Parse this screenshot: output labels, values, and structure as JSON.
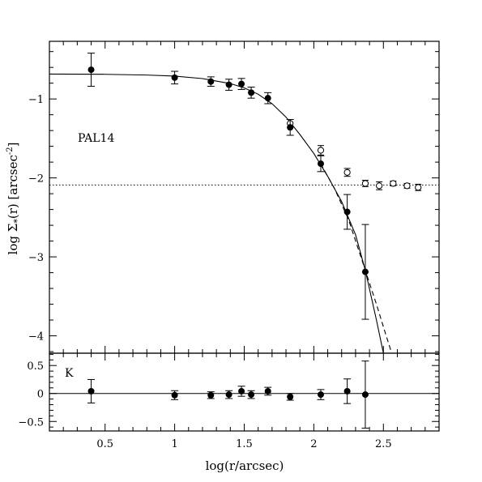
{
  "chart_data": [
    {
      "type": "scatter",
      "panel": "top",
      "title": "",
      "xlabel": "",
      "ylabel": "log Σ",
      "ylabel_sub": "*",
      "ylabel_rest": "(r) [arcsec",
      "ylabel_sup": "-2",
      "ylabel_end": "]",
      "annotation": "PAL14",
      "xlim": [
        0.1,
        2.9
      ],
      "ylim": [
        -4.22,
        -0.27
      ],
      "x_ticks": [
        0.5,
        1,
        1.5,
        2,
        2.5
      ],
      "y_ticks": [
        {
          "value": -1,
          "label": "−1"
        },
        {
          "value": -2,
          "label": "−2"
        },
        {
          "value": -3,
          "label": "−3"
        },
        {
          "value": -4,
          "label": "−4"
        }
      ],
      "background_level": -2.09,
      "series": [
        {
          "style": "filled-circles",
          "points": [
            {
              "x": 0.4,
              "y": -0.63,
              "err": 0.21
            },
            {
              "x": 1.0,
              "y": -0.73,
              "err": 0.08
            },
            {
              "x": 1.26,
              "y": -0.78,
              "err": 0.06
            },
            {
              "x": 1.39,
              "y": -0.82,
              "err": 0.07
            },
            {
              "x": 1.48,
              "y": -0.81,
              "err": 0.07
            },
            {
              "x": 1.55,
              "y": -0.92,
              "err": 0.07
            },
            {
              "x": 1.67,
              "y": -0.99,
              "err": 0.07
            },
            {
              "x": 1.83,
              "y": -1.36,
              "err": 0.1
            },
            {
              "x": 2.05,
              "y": -1.82,
              "err": 0.1
            },
            {
              "x": 2.24,
              "y": -2.43,
              "err": 0.22
            },
            {
              "x": 2.37,
              "y": -3.19,
              "err": 0.6
            }
          ]
        },
        {
          "style": "open-circles",
          "points": [
            {
              "x": 1.83,
              "y": -1.31,
              "err": 0.05
            },
            {
              "x": 2.05,
              "y": -1.65,
              "err": 0.06
            },
            {
              "x": 2.24,
              "y": -1.93,
              "err": 0.05
            },
            {
              "x": 2.37,
              "y": -2.07,
              "err": 0.04
            },
            {
              "x": 2.47,
              "y": -2.1,
              "err": 0.05
            },
            {
              "x": 2.57,
              "y": -2.07,
              "err": 0.03
            },
            {
              "x": 2.67,
              "y": -2.1,
              "err": 0.03
            },
            {
              "x": 2.75,
              "y": -2.12,
              "err": 0.04
            }
          ]
        }
      ],
      "curves": [
        {
          "style": "solid",
          "points": [
            [
              0.1,
              -0.685
            ],
            [
              0.5,
              -0.688
            ],
            [
              0.8,
              -0.697
            ],
            [
              1.0,
              -0.711
            ],
            [
              1.2,
              -0.742
            ],
            [
              1.4,
              -0.805
            ],
            [
              1.5,
              -0.86
            ],
            [
              1.6,
              -0.94
            ],
            [
              1.7,
              -1.06
            ],
            [
              1.8,
              -1.23
            ],
            [
              1.9,
              -1.45
            ],
            [
              2.0,
              -1.69
            ],
            [
              2.1,
              -1.98
            ],
            [
              2.2,
              -2.3
            ],
            [
              2.3,
              -2.72
            ],
            [
              2.37,
              -3.17
            ],
            [
              2.45,
              -3.8
            ],
            [
              2.5,
              -4.22
            ]
          ]
        },
        {
          "style": "dashed",
          "points": [
            [
              2.05,
              -1.82
            ],
            [
              2.15,
              -2.14
            ],
            [
              2.25,
              -2.53
            ],
            [
              2.37,
              -3.17
            ],
            [
              2.45,
              -3.6
            ],
            [
              2.52,
              -4.0
            ],
            [
              2.56,
              -4.22
            ]
          ]
        }
      ]
    },
    {
      "type": "scatter",
      "panel": "bottom",
      "title": "",
      "xlabel": "log(r/arcsec)",
      "ylabel": "",
      "annotation": "K",
      "xlim": [
        0.1,
        2.9
      ],
      "ylim": [
        -0.67,
        0.72
      ],
      "x_ticks": [
        0.5,
        1,
        1.5,
        2,
        2.5
      ],
      "x_tick_labels": [
        "0.5",
        "1",
        "1.5",
        "2",
        "2.5"
      ],
      "y_ticks": [
        {
          "value": 0.5,
          "label": "0.5"
        },
        {
          "value": 0,
          "label": "0"
        },
        {
          "value": -0.5,
          "label": "−0.5"
        }
      ],
      "zero_line": 0,
      "points": [
        {
          "x": 0.4,
          "y": 0.04,
          "err": 0.21
        },
        {
          "x": 1.0,
          "y": -0.03,
          "err": 0.08
        },
        {
          "x": 1.26,
          "y": -0.03,
          "err": 0.06
        },
        {
          "x": 1.39,
          "y": -0.02,
          "err": 0.07
        },
        {
          "x": 1.48,
          "y": 0.04,
          "err": 0.09
        },
        {
          "x": 1.55,
          "y": -0.02,
          "err": 0.07
        },
        {
          "x": 1.67,
          "y": 0.04,
          "err": 0.07
        },
        {
          "x": 1.83,
          "y": -0.06,
          "err": 0.06
        },
        {
          "x": 2.05,
          "y": -0.02,
          "err": 0.09
        },
        {
          "x": 2.24,
          "y": 0.04,
          "err": 0.22
        },
        {
          "x": 2.37,
          "y": -0.02,
          "err": 0.6
        }
      ]
    }
  ]
}
